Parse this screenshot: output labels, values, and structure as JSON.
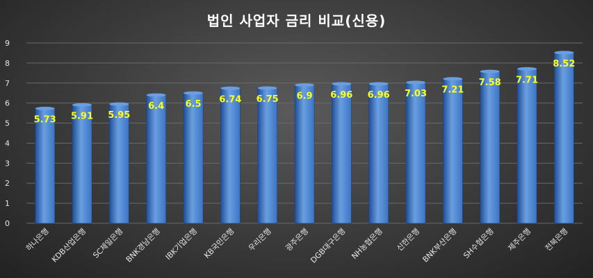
{
  "chart_data": {
    "type": "bar",
    "title": "법인 사업자 금리 비교(신용)",
    "categories": [
      "하나은행",
      "KDB산업은행",
      "SC제일은행",
      "BNK경남은행",
      "IBK기업은행",
      "KB국민은행",
      "우리은행",
      "광주은행",
      "DGB대구은행",
      "NH농협은행",
      "신한은행",
      "BNK부산은행",
      "SH수협은행",
      "제주은행",
      "전북은행"
    ],
    "values": [
      5.73,
      5.91,
      5.95,
      6.4,
      6.5,
      6.74,
      6.75,
      6.9,
      6.96,
      6.96,
      7.03,
      7.21,
      7.58,
      7.71,
      8.52
    ],
    "value_labels": [
      "5.73",
      "5.91",
      "5.95",
      "6.4",
      "6.5",
      "6.74",
      "6.75",
      "6.9",
      "6.96",
      "6.96",
      "7.03",
      "7.21",
      "7.58",
      "7.71",
      "8.52"
    ],
    "ylim": [
      0,
      9
    ],
    "yticks": [
      0,
      1,
      2,
      3,
      4,
      5,
      6,
      7,
      8,
      9
    ],
    "xlabel": "",
    "ylabel": "",
    "grid": true,
    "legend": "none",
    "colors": {
      "bar": "#3b74c4",
      "bar_dark": "#1f4f98",
      "bar_light": "#6a9ee0",
      "data_label": "#ffff1a",
      "grid": "#6a6a6a"
    }
  }
}
